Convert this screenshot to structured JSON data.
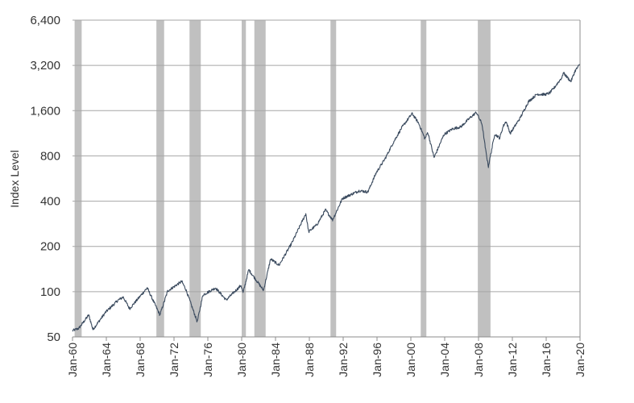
{
  "chart_data": {
    "type": "line",
    "ylabel": "Index Level",
    "xlabel": "",
    "y_scale": "log2",
    "ylim": [
      50,
      6400
    ],
    "y_ticks": [
      50,
      100,
      200,
      400,
      800,
      1600,
      3200,
      6400
    ],
    "y_tick_labels": [
      "50",
      "100",
      "200",
      "400",
      "800",
      "1,600",
      "3,200",
      "6,400"
    ],
    "xlim": [
      "1960-01",
      "2020-01"
    ],
    "x_tick_labels": [
      "Jan-60",
      "Jan-64",
      "Jan-68",
      "Jan-72",
      "Jan-76",
      "Jan-80",
      "Jan-84",
      "Jan-88",
      "Jan-92",
      "Jan-96",
      "Jan-00",
      "Jan-04",
      "Jan-08",
      "Jan-12",
      "Jan-16",
      "Jan-20"
    ],
    "grid": "horizontal",
    "colors": {
      "line": "#3a4a5e",
      "recession": "#c0c0c0",
      "grid": "#a6a6a6"
    },
    "recessions": [
      {
        "start": "1960-04",
        "end": "1961-02"
      },
      {
        "start": "1969-12",
        "end": "1970-11"
      },
      {
        "start": "1973-11",
        "end": "1975-03"
      },
      {
        "start": "1980-01",
        "end": "1980-07"
      },
      {
        "start": "1981-07",
        "end": "1982-11"
      },
      {
        "start": "1990-07",
        "end": "1991-03"
      },
      {
        "start": "2001-03",
        "end": "2001-11"
      },
      {
        "start": "2007-12",
        "end": "2009-06"
      }
    ],
    "series": [
      {
        "x": [
          "1960-01",
          "1960-10",
          "1961-12",
          "1962-06",
          "1963-12",
          "1965-06",
          "1966-01",
          "1966-10",
          "1968-11",
          "1970-05",
          "1971-04",
          "1972-12",
          "1973-06",
          "1974-10",
          "1975-06",
          "1976-12",
          "1978-03",
          "1979-12",
          "1980-03",
          "1980-11",
          "1982-08",
          "1983-06",
          "1984-06",
          "1985-12",
          "1987-08",
          "1987-12",
          "1988-12",
          "1989-12",
          "1990-10",
          "1991-12",
          "1993-12",
          "1994-12",
          "1995-12",
          "1996-12",
          "1997-12",
          "1998-12",
          "1999-12",
          "2000-03",
          "2000-12",
          "2001-09",
          "2002-01",
          "2002-10",
          "2003-12",
          "2004-12",
          "2005-12",
          "2006-12",
          "2007-10",
          "2008-06",
          "2008-11",
          "2009-03",
          "2009-12",
          "2010-07",
          "2010-12",
          "2011-04",
          "2011-10",
          "2012-12",
          "2013-12",
          "2014-12",
          "2015-12",
          "2016-06",
          "2016-12",
          "2017-12",
          "2018-01",
          "2018-12",
          "2019-06",
          "2020-01"
        ],
        "values": [
          55,
          57,
          70,
          56,
          73,
          88,
          92,
          77,
          106,
          70,
          101,
          117,
          103,
          63,
          95,
          106,
          88,
          110,
          98,
          140,
          102,
          165,
          150,
          210,
          330,
          250,
          280,
          350,
          300,
          417,
          470,
          460,
          620,
          760,
          980,
          1230,
          1470,
          1530,
          1320,
          1040,
          1150,
          780,
          1110,
          1210,
          1250,
          1420,
          1560,
          1300,
          880,
          680,
          1120,
          1050,
          1260,
          1360,
          1130,
          1430,
          1840,
          2060,
          2050,
          2100,
          2260,
          2690,
          2870,
          2500,
          2940,
          3260
        ]
      }
    ]
  }
}
